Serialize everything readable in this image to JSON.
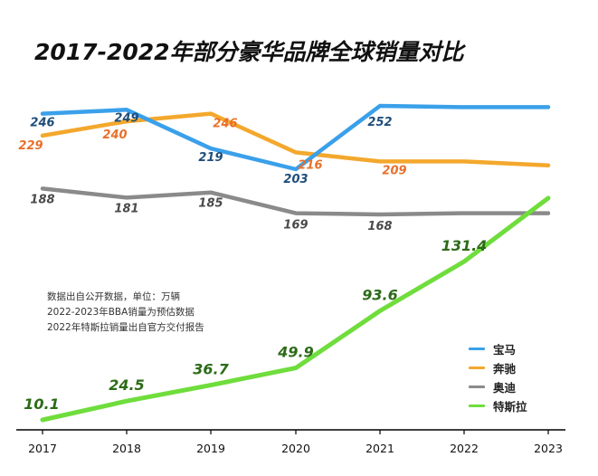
{
  "title": "2017-2022年部分豪华品牌全球销量对比",
  "notes": [
    "数据出自公开数据，单位：万辆",
    "2022-2023年BBA销量为预估数据",
    "2022年特斯拉销量出自官方交付报告"
  ],
  "colors": {
    "bmw": "#3aa0ea",
    "benz": "#f3a82d",
    "audi": "#8a8a8a",
    "tesla": "#6fdd3c",
    "bmw_label": "#1f4e7a",
    "benz_label": "#e8702a",
    "audi_label": "#4a4a4a",
    "tesla_label": "#2c6b18"
  },
  "chart_data": {
    "type": "line",
    "title": "2017-2022年部分豪华品牌全球销量对比",
    "xlabel": "",
    "ylabel": "",
    "categories": [
      "2017",
      "2018",
      "2019",
      "2020",
      "2021",
      "2022",
      "2023"
    ],
    "series": [
      {
        "key": "bmw",
        "name": "宝马",
        "values": [
          246,
          249,
          219,
          203,
          252,
          251,
          251
        ],
        "labels": [
          "246",
          "249",
          "219",
          "203",
          "252",
          "",
          ""
        ]
      },
      {
        "key": "benz",
        "name": "奔驰",
        "values": [
          229,
          240,
          246,
          216,
          209,
          209,
          206
        ],
        "labels": [
          "229",
          "240",
          "246",
          "216",
          "209",
          "",
          ""
        ]
      },
      {
        "key": "audi",
        "name": "奥迪",
        "values": [
          188,
          181,
          185,
          169,
          168,
          169,
          169
        ],
        "labels": [
          "188",
          "181",
          "185",
          "169",
          "168",
          "",
          ""
        ]
      },
      {
        "key": "tesla",
        "name": "特斯拉",
        "values": [
          10.1,
          24.5,
          36.7,
          49.9,
          93.6,
          131.4,
          180
        ],
        "labels": [
          "10.1",
          "24.5",
          "36.7",
          "49.9",
          "93.6",
          "131.4",
          ""
        ]
      }
    ],
    "legend": [
      "宝马",
      "奔驰",
      "奥迪",
      "特斯拉"
    ],
    "legend_position": "bottom-right",
    "grid": false
  }
}
